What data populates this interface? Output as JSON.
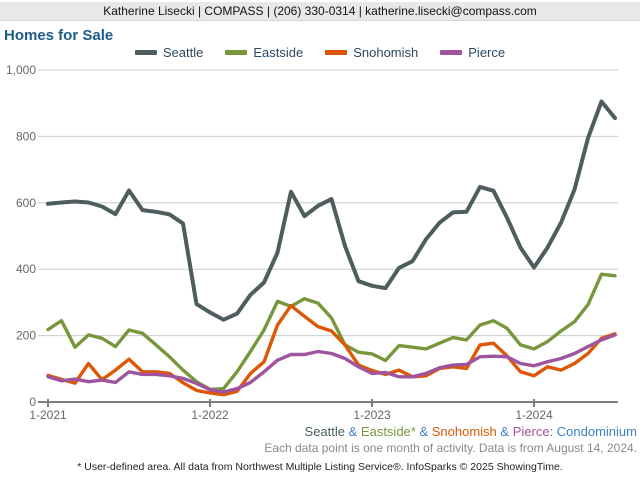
{
  "header": {
    "contact_bar": "Katherine Lisecki | COMPASS | (206) 330-0314 | katherine.lisecki@compass.com"
  },
  "title": "Homes for Sale",
  "colors": {
    "seattle": "#4e5d5d",
    "eastside": "#78963c",
    "snohomish": "#dd5705",
    "pierce": "#a0539f",
    "footnote_blue": "#3e82c4",
    "grid": "#cccccc",
    "axis": "#7d7d7d",
    "tick_label": "#666666"
  },
  "chart_data": {
    "type": "line",
    "title": "Homes for Sale",
    "x_months": 43,
    "x_first_month": "1-2021",
    "x_last_month": "7-2024",
    "x_tick_labels": [
      "1-2021",
      "1-2022",
      "1-2023",
      "1-2024"
    ],
    "x_tick_month_indexes": [
      0,
      12,
      24,
      36
    ],
    "ylim": [
      0,
      1000
    ],
    "y_ticks": [
      0,
      200,
      400,
      600,
      800,
      1000
    ],
    "y_tick_labels": [
      "0",
      "200",
      "400",
      "600",
      "800",
      "1,000"
    ],
    "grid": true,
    "legend_position": "top",
    "series": [
      {
        "name": "Seattle",
        "color": "#4e5d5d",
        "values": [
          597,
          601,
          604,
          601,
          589,
          566,
          637,
          578,
          573,
          565,
          538,
          295,
          270,
          248,
          266,
          323,
          360,
          450,
          633,
          560,
          591,
          611,
          470,
          364,
          350,
          343,
          404,
          424,
          490,
          540,
          571,
          573,
          648,
          636,
          555,
          465,
          405,
          465,
          540,
          640,
          795,
          905,
          855
        ]
      },
      {
        "name": "Eastside",
        "color": "#78963c",
        "values": [
          218,
          245,
          165,
          202,
          192,
          167,
          217,
          207,
          172,
          136,
          96,
          61,
          38,
          40,
          91,
          152,
          217,
          303,
          288,
          311,
          298,
          253,
          172,
          150,
          145,
          125,
          170,
          165,
          160,
          177,
          194,
          187,
          232,
          245,
          222,
          172,
          160,
          182,
          214,
          242,
          293,
          385,
          380
        ]
      },
      {
        "name": "Snohomish",
        "color": "#dd5705",
        "values": [
          80,
          68,
          57,
          116,
          67,
          96,
          129,
          91,
          91,
          86,
          58,
          35,
          27,
          22,
          32,
          86,
          121,
          232,
          290,
          258,
          227,
          214,
          172,
          111,
          95,
          83,
          96,
          76,
          79,
          101,
          106,
          101,
          172,
          177,
          139,
          91,
          79,
          106,
          96,
          116,
          146,
          192,
          205
        ]
      },
      {
        "name": "Pierce",
        "color": "#a0539f",
        "values": [
          76,
          64,
          69,
          61,
          66,
          59,
          91,
          83,
          83,
          79,
          71,
          56,
          37,
          30,
          40,
          59,
          91,
          126,
          143,
          143,
          152,
          146,
          131,
          106,
          86,
          89,
          76,
          76,
          86,
          103,
          111,
          113,
          136,
          138,
          136,
          116,
          109,
          121,
          131,
          146,
          167,
          187,
          202
        ]
      }
    ]
  },
  "footnotes": {
    "series_line_segments": [
      {
        "text": "Seattle",
        "color": "#4e5d5d"
      },
      {
        "text": " & ",
        "color": "#3e82c4"
      },
      {
        "text": "Eastside*",
        "color": "#78963c"
      },
      {
        "text": " & ",
        "color": "#3e82c4"
      },
      {
        "text": "Snohomish",
        "color": "#dd5705"
      },
      {
        "text": " & ",
        "color": "#3e82c4"
      },
      {
        "text": "Pierce",
        "color": "#a0539f"
      },
      {
        "text": ": Condominium",
        "color": "#3e82c4"
      }
    ],
    "activity_note": "Each data point is one month of activity. Data is from August 14, 2024.",
    "disclaimer": "* User-defined area. All data from Northwest Multiple Listing Service®. InfoSparks © 2025 ShowingTime."
  }
}
